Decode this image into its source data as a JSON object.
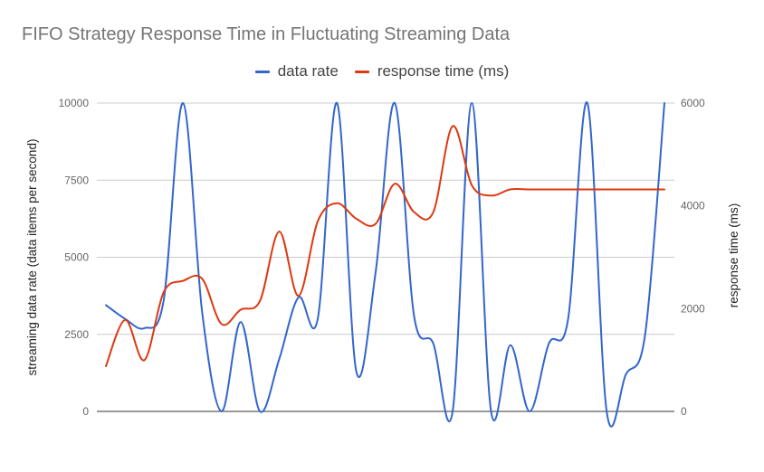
{
  "chart_data": {
    "type": "line",
    "title": "FIFO Strategy Response Time in Fluctuating Streaming Data",
    "legend_position": "top",
    "grid": true,
    "left_axis": {
      "label": "streaming data rate (data items per second)",
      "ticks": [
        "0",
        "2500",
        "5000",
        "7500",
        "10000"
      ],
      "ylim": [
        0,
        10000
      ]
    },
    "right_axis": {
      "label": "response time (ms)",
      "ticks": [
        "0",
        "2000",
        "4000",
        "6000"
      ],
      "ylim": [
        0,
        6000
      ]
    },
    "series": [
      {
        "name": "data rate",
        "axis": "left",
        "color": "#3366cc",
        "values": [
          3450,
          3000,
          2700,
          3600,
          10000,
          3200,
          0,
          2900,
          0,
          1700,
          3700,
          3000,
          10000,
          1300,
          4500,
          10000,
          3100,
          2200,
          0,
          10000,
          0,
          2150,
          0,
          2200,
          3000,
          10000,
          0,
          1200,
          2500,
          10000
        ]
      },
      {
        "name": "response time (ms)",
        "axis": "right",
        "color": "#dc3912",
        "values": [
          880,
          1780,
          1000,
          2320,
          2540,
          2580,
          1700,
          1980,
          2150,
          3500,
          2250,
          3700,
          4050,
          3750,
          3650,
          4430,
          3880,
          3880,
          5550,
          4400,
          4200,
          4320,
          4320,
          4320,
          4320,
          4320,
          4320,
          4320,
          4320,
          4320
        ]
      }
    ]
  }
}
